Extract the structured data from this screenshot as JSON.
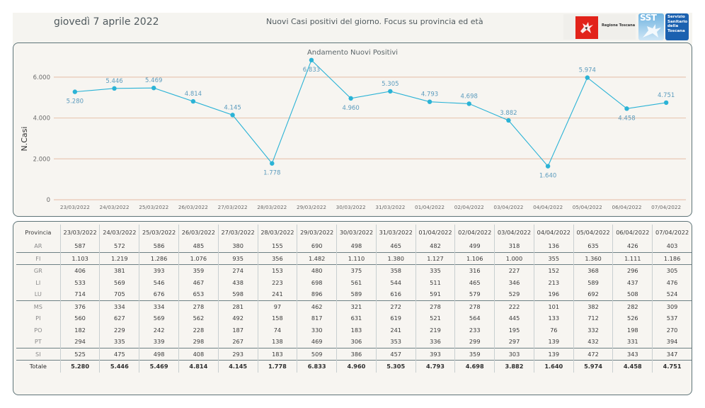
{
  "header": {
    "date": "giovedì 7 aprile 2022",
    "title": "Nuovi Casi positivi del giorno. Focus su provincia ed età",
    "logo_regione": "Regione Toscana",
    "logo_sst_short": "SST",
    "logo_sst_lines": [
      "Servizio",
      "Sanitario",
      "della",
      "Toscana"
    ]
  },
  "colors": {
    "line": "#2bb3d6",
    "label": "#5b9bbd",
    "grid": "#e8c8b4",
    "panel_border": "#5e7478"
  },
  "chart_data": {
    "type": "line",
    "title": "Andamento Nuovi Positivi",
    "xlabel": "",
    "ylabel": "N.Casi",
    "ylim": [
      0,
      7000
    ],
    "yticks": [
      0,
      2000,
      4000,
      6000
    ],
    "ytick_labels": [
      "0",
      "2.000",
      "4.000",
      "6.000"
    ],
    "grid": true,
    "categories": [
      "23/03/2022",
      "24/03/2022",
      "25/03/2022",
      "26/03/2022",
      "27/03/2022",
      "28/03/2022",
      "29/03/2022",
      "30/03/2022",
      "31/03/2022",
      "01/04/2022",
      "02/04/2022",
      "03/04/2022",
      "04/04/2022",
      "05/04/2022",
      "06/04/2022",
      "07/04/2022"
    ],
    "series": [
      {
        "name": "Nuovi Positivi",
        "values": [
          5280,
          5446,
          5469,
          4814,
          4145,
          1778,
          6833,
          4960,
          5305,
          4793,
          4698,
          3882,
          1640,
          5974,
          4458,
          4751
        ],
        "labels": [
          "5.280",
          "5.446",
          "5.469",
          "4.814",
          "4.145",
          "1.778",
          "6.833",
          "4.960",
          "5.305",
          "4.793",
          "4.698",
          "3.882",
          "1.640",
          "5.974",
          "4.458",
          "4.751"
        ],
        "label_pos": [
          "below",
          "above",
          "above",
          "above",
          "above",
          "below",
          "below",
          "below",
          "above",
          "above",
          "above",
          "above",
          "below",
          "above",
          "below",
          "above"
        ]
      }
    ]
  },
  "table": {
    "header_first": "Provincia",
    "columns": [
      "23/03/2022",
      "24/03/2022",
      "25/03/2022",
      "26/03/2022",
      "27/03/2022",
      "28/03/2022",
      "29/03/2022",
      "30/03/2022",
      "31/03/2022",
      "01/04/2022",
      "02/04/2022",
      "03/04/2022",
      "04/04/2022",
      "05/04/2022",
      "06/04/2022",
      "07/04/2022"
    ],
    "rows": [
      {
        "prov": "AR",
        "values": [
          "587",
          "572",
          "586",
          "485",
          "380",
          "155",
          "690",
          "498",
          "465",
          "482",
          "499",
          "318",
          "136",
          "635",
          "426",
          "403"
        ]
      },
      {
        "prov": "FI",
        "values": [
          "1.103",
          "1.219",
          "1.286",
          "1.076",
          "935",
          "356",
          "1.482",
          "1.110",
          "1.380",
          "1.127",
          "1.106",
          "1.000",
          "355",
          "1.360",
          "1.111",
          "1.186"
        ]
      },
      {
        "prov": "GR",
        "values": [
          "406",
          "381",
          "393",
          "359",
          "274",
          "153",
          "480",
          "375",
          "358",
          "335",
          "316",
          "227",
          "152",
          "368",
          "296",
          "305"
        ]
      },
      {
        "prov": "LI",
        "values": [
          "533",
          "569",
          "546",
          "467",
          "438",
          "223",
          "698",
          "561",
          "544",
          "511",
          "465",
          "346",
          "213",
          "589",
          "437",
          "476"
        ]
      },
      {
        "prov": "LU",
        "values": [
          "714",
          "705",
          "676",
          "653",
          "598",
          "241",
          "896",
          "589",
          "616",
          "591",
          "579",
          "529",
          "196",
          "692",
          "508",
          "524"
        ]
      },
      {
        "prov": "MS",
        "values": [
          "376",
          "334",
          "334",
          "278",
          "281",
          "97",
          "462",
          "321",
          "272",
          "278",
          "278",
          "222",
          "101",
          "382",
          "282",
          "309"
        ]
      },
      {
        "prov": "PI",
        "values": [
          "560",
          "627",
          "569",
          "562",
          "492",
          "158",
          "817",
          "631",
          "619",
          "521",
          "564",
          "445",
          "133",
          "712",
          "526",
          "537"
        ]
      },
      {
        "prov": "PO",
        "values": [
          "182",
          "229",
          "242",
          "228",
          "187",
          "74",
          "330",
          "183",
          "241",
          "219",
          "233",
          "195",
          "76",
          "332",
          "198",
          "270"
        ]
      },
      {
        "prov": "PT",
        "values": [
          "294",
          "335",
          "339",
          "298",
          "267",
          "138",
          "469",
          "306",
          "353",
          "336",
          "299",
          "297",
          "139",
          "432",
          "331",
          "394"
        ]
      },
      {
        "prov": "SI",
        "values": [
          "525",
          "475",
          "498",
          "408",
          "293",
          "183",
          "509",
          "386",
          "457",
          "393",
          "359",
          "303",
          "139",
          "472",
          "343",
          "347"
        ]
      }
    ],
    "total": {
      "prov": "Totale",
      "values": [
        "5.280",
        "5.446",
        "5.469",
        "4.814",
        "4.145",
        "1.778",
        "6.833",
        "4.960",
        "5.305",
        "4.793",
        "4.698",
        "3.882",
        "1.640",
        "5.974",
        "4.458",
        "4.751"
      ]
    }
  }
}
